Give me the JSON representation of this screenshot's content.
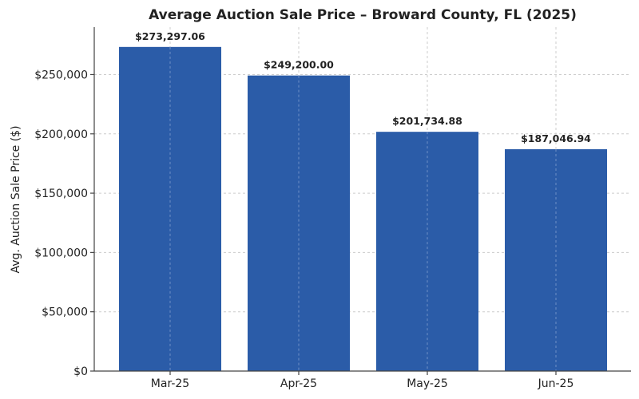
{
  "chart_data": {
    "type": "bar",
    "title": "Average Auction Sale Price – Broward County, FL (2025)",
    "xlabel": "",
    "ylabel": "Avg. Auction Sale Price ($)",
    "categories": [
      "Mar-25",
      "Apr-25",
      "May-25",
      "Jun-25"
    ],
    "values": [
      273297.06,
      249200.0,
      201734.88,
      187046.94
    ],
    "data_labels": [
      "$273,297.06",
      "$249,200.00",
      "$201,734.88",
      "$187,046.94"
    ],
    "ylim": [
      0,
      290000
    ],
    "yticks": [
      0,
      50000,
      100000,
      150000,
      200000,
      250000
    ],
    "ytick_labels": [
      "$0",
      "$50,000",
      "$100,000",
      "$150,000",
      "$200,000",
      "$250,000"
    ],
    "grid": true,
    "bar_color": "#2b5ca8"
  }
}
